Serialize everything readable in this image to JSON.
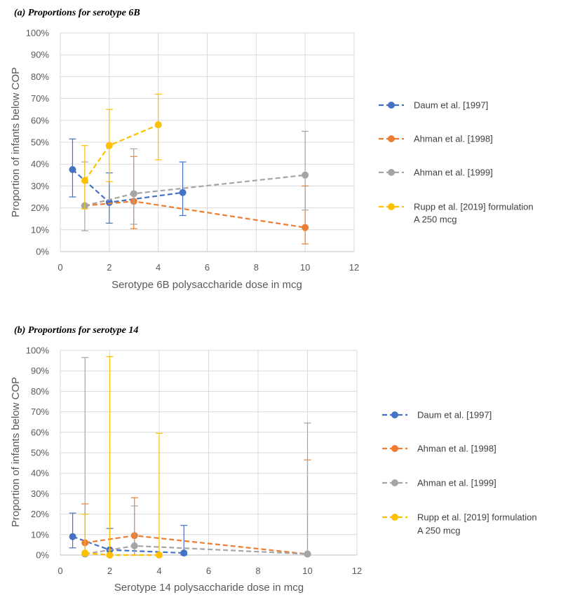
{
  "chart_data": [
    {
      "type": "line",
      "title": "(a) Proportions for serotype 6B",
      "xlabel": "Serotype 6B polysaccharide dose in mcg",
      "ylabel": "Proportion of infants below COP",
      "xlim": [
        0,
        12
      ],
      "ylim": [
        0,
        1
      ],
      "xticks": [
        "0",
        "2",
        "4",
        "6",
        "8",
        "10",
        "12"
      ],
      "yticks": [
        "0%",
        "10%",
        "20%",
        "30%",
        "40%",
        "50%",
        "60%",
        "70%",
        "80%",
        "90%",
        "100%"
      ],
      "series": [
        {
          "name": "Daum et al. [1997]",
          "color": "#4472C4",
          "dash": true,
          "points": [
            {
              "x": 0.5,
              "y": 0.375,
              "lo": 0.25,
              "hi": 0.515
            },
            {
              "x": 2,
              "y": 0.225,
              "lo": 0.13,
              "hi": 0.36
            },
            {
              "x": 5,
              "y": 0.27,
              "lo": 0.165,
              "hi": 0.41
            }
          ]
        },
        {
          "name": "Ahman et al. [1998]",
          "color": "#ED7D31",
          "dash": true,
          "points": [
            {
              "x": 1,
              "y": 0.21,
              "lo": 0.21,
              "hi": 0.21
            },
            {
              "x": 3,
              "y": 0.23,
              "lo": 0.105,
              "hi": 0.435
            },
            {
              "x": 10,
              "y": 0.11,
              "lo": 0.035,
              "hi": 0.3
            }
          ]
        },
        {
          "name": "Ahman et al. [1999]",
          "color": "#A5A5A5",
          "dash": true,
          "points": [
            {
              "x": 1,
              "y": 0.21,
              "lo": 0.095,
              "hi": 0.41
            },
            {
              "x": 3,
              "y": 0.265,
              "lo": 0.125,
              "hi": 0.47
            },
            {
              "x": 10,
              "y": 0.35,
              "lo": 0.19,
              "hi": 0.55
            }
          ]
        },
        {
          "name": "Rupp et al. [2019] formulation A 250 mcg",
          "legend_lines": [
            "Rupp et al. [2019] formulation",
            "A 250 mcg"
          ],
          "color": "#FFC000",
          "dash": true,
          "points": [
            {
              "x": 1,
              "y": 0.325,
              "lo": 0.195,
              "hi": 0.485
            },
            {
              "x": 2,
              "y": 0.485,
              "lo": 0.32,
              "hi": 0.65
            },
            {
              "x": 4,
              "y": 0.58,
              "lo": 0.42,
              "hi": 0.72
            }
          ]
        }
      ]
    },
    {
      "type": "line",
      "title": "(b) Proportions for serotype 14",
      "xlabel": "Serotype 14 polysaccharide dose in mcg",
      "ylabel": "Proportion of infants below COP",
      "xlim": [
        0,
        12
      ],
      "ylim": [
        0,
        1
      ],
      "xticks": [
        "0",
        "2",
        "4",
        "6",
        "8",
        "10",
        "12"
      ],
      "yticks": [
        "0%",
        "10%",
        "20%",
        "30%",
        "40%",
        "50%",
        "60%",
        "70%",
        "80%",
        "90%",
        "100%"
      ],
      "series": [
        {
          "name": "Daum et al. [1997]",
          "color": "#4472C4",
          "dash": true,
          "points": [
            {
              "x": 0.5,
              "y": 0.09,
              "lo": 0.035,
              "hi": 0.205
            },
            {
              "x": 2,
              "y": 0.025,
              "lo": 0.0,
              "hi": 0.13
            },
            {
              "x": 5,
              "y": 0.01,
              "lo": 0.0,
              "hi": 0.145
            }
          ]
        },
        {
          "name": "Ahman et al. [1998]",
          "color": "#ED7D31",
          "dash": true,
          "points": [
            {
              "x": 1,
              "y": 0.06,
              "lo": 0.0,
              "hi": 0.25
            },
            {
              "x": 3,
              "y": 0.095,
              "lo": 0.0,
              "hi": 0.28
            },
            {
              "x": 10,
              "y": 0.005,
              "lo": 0.0,
              "hi": 0.465
            }
          ]
        },
        {
          "name": "Ahman et al. [1999]",
          "color": "#A5A5A5",
          "dash": true,
          "points": [
            {
              "x": 1,
              "y": 0.005,
              "lo": 0.0,
              "hi": 0.965
            },
            {
              "x": 3,
              "y": 0.045,
              "lo": 0.0,
              "hi": 0.24
            },
            {
              "x": 10,
              "y": 0.005,
              "lo": 0.0,
              "hi": 0.645
            }
          ]
        },
        {
          "name": "Rupp et al. [2019] formulation A 250 mcg",
          "legend_lines": [
            "Rupp et al. [2019] formulation",
            "A 250 mcg"
          ],
          "color": "#FFC000",
          "dash": true,
          "points": [
            {
              "x": 1,
              "y": 0.01,
              "lo": 0.0,
              "hi": 0.2
            },
            {
              "x": 2,
              "y": 0.0,
              "lo": 0.0,
              "hi": 0.97
            },
            {
              "x": 4,
              "y": 0.0,
              "lo": 0.0,
              "hi": 0.595
            }
          ]
        }
      ]
    }
  ]
}
